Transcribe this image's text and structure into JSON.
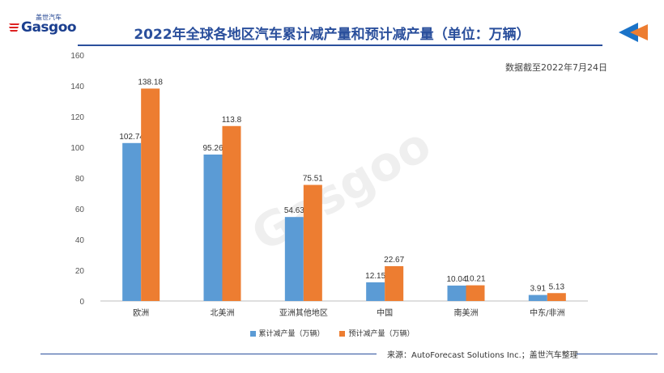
{
  "logo": {
    "brand": "Gasgoo",
    "cn": "盖世汽车"
  },
  "title": "2022年全球各地区汽车累计减产量和预计减产量（单位：万辆）",
  "note": "数据截至2022年7月24日",
  "source": "来源：AutoForecast Solutions Inc.；盖世汽车整理",
  "watermark": "Gasgoo",
  "colors": {
    "title": "#2a4f9c",
    "series1": "#5b9bd5",
    "series2": "#ed7d31",
    "arrow_left": "#1a73c8",
    "arrow_right": "#ed7d31"
  },
  "chart_data": {
    "type": "bar",
    "categories": [
      "欧洲",
      "北美洲",
      "亚洲其他地区",
      "中国",
      "南美洲",
      "中东/非洲"
    ],
    "series": [
      {
        "name": "累计减产量（万辆）",
        "values": [
          102.74,
          95.26,
          54.63,
          12.15,
          10.04,
          3.91
        ],
        "labels": [
          "102.74",
          "95.26",
          "54.63",
          "12.15",
          "10.04",
          "3.91"
        ]
      },
      {
        "name": "预计减产量（万辆）",
        "values": [
          138.18,
          113.8,
          75.51,
          22.67,
          10.21,
          5.13
        ],
        "labels": [
          "138.18",
          "113.8",
          "75.51",
          "22.67",
          "10.21",
          "5.13"
        ]
      }
    ],
    "ylim": [
      0,
      160
    ],
    "yticks": [
      "0",
      "20",
      "40",
      "60",
      "80",
      "100",
      "120",
      "140",
      "160"
    ],
    "legend_position": "bottom",
    "grid": false
  }
}
